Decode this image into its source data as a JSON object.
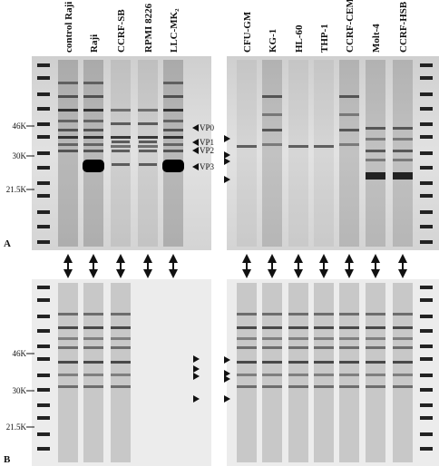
{
  "panel_a": {
    "label": "A",
    "left_lanes": [
      "control Raji",
      "Raji",
      "CCRF-SB",
      "RPMI 8226",
      "LLC-MK₂"
    ],
    "right_lanes": [
      "CFU-GM",
      "KG-1",
      "HL-60",
      "THP-1",
      "CCRF-CEM",
      "Molt-4",
      "CCRF-HSB"
    ],
    "markers": [
      "46K",
      "30K",
      "21.5K"
    ],
    "vp_labels": [
      "VP0",
      "VP1",
      "VP2",
      "VP3"
    ]
  },
  "panel_b": {
    "label": "B",
    "markers": [
      "46K",
      "30K",
      "21.5K"
    ]
  }
}
